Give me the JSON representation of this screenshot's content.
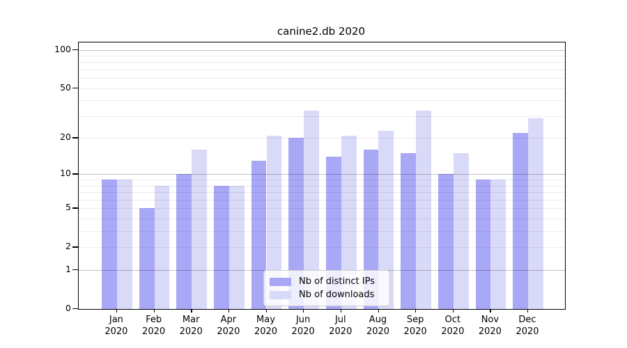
{
  "title": "canine2.db 2020",
  "colors": {
    "distinct_ips": "#a8a8f6",
    "downloads": "#d9d9f8",
    "major_gridline": "#bfbfbf",
    "minor_gridline": "#ebebeb",
    "axis": "#000000",
    "legend_border": "#cccccc"
  },
  "legend": {
    "items": [
      {
        "label": "Nb of distinct IPs",
        "color_key": "distinct_ips"
      },
      {
        "label": "Nb of downloads",
        "color_key": "downloads"
      }
    ]
  },
  "y_axis": {
    "scale": "log1p",
    "max_value": 114,
    "tick_values": [
      100,
      50,
      20,
      10,
      5,
      2,
      1,
      0
    ],
    "tick_labels": [
      "100",
      "50",
      "20",
      "10",
      "5",
      "2",
      "1",
      "0"
    ],
    "major_gridline_values": [
      1,
      10,
      100
    ],
    "minor_gridline_values": [
      2,
      3,
      4,
      5,
      6,
      7,
      8,
      9,
      20,
      30,
      40,
      50,
      60,
      70,
      80,
      90
    ]
  },
  "x_axis": {
    "categories": [
      {
        "month": "Jan",
        "year": "2020"
      },
      {
        "month": "Feb",
        "year": "2020"
      },
      {
        "month": "Mar",
        "year": "2020"
      },
      {
        "month": "Apr",
        "year": "2020"
      },
      {
        "month": "May",
        "year": "2020"
      },
      {
        "month": "Jun",
        "year": "2020"
      },
      {
        "month": "Jul",
        "year": "2020"
      },
      {
        "month": "Aug",
        "year": "2020"
      },
      {
        "month": "Sep",
        "year": "2020"
      },
      {
        "month": "Oct",
        "year": "2020"
      },
      {
        "month": "Nov",
        "year": "2020"
      },
      {
        "month": "Dec",
        "year": "2020"
      }
    ]
  },
  "chart_data": {
    "type": "bar",
    "title": "canine2.db 2020",
    "categories": [
      "Jan 2020",
      "Feb 2020",
      "Mar 2020",
      "Apr 2020",
      "May 2020",
      "Jun 2020",
      "Jul 2020",
      "Aug 2020",
      "Sep 2020",
      "Oct 2020",
      "Nov 2020",
      "Dec 2020"
    ],
    "series": [
      {
        "name": "Nb of distinct IPs",
        "color_key": "distinct_ips",
        "values": [
          9,
          5,
          10,
          8,
          13,
          20,
          14,
          16,
          15,
          10,
          9,
          22
        ]
      },
      {
        "name": "Nb of downloads",
        "color_key": "downloads",
        "values": [
          9,
          8,
          16,
          8,
          21,
          33,
          21,
          23,
          33,
          15,
          9,
          29
        ]
      }
    ],
    "xlabel": "",
    "ylabel": "",
    "yscale": "log1p",
    "ylim": [
      0,
      114
    ],
    "yticks": [
      0,
      1,
      2,
      5,
      10,
      20,
      50,
      100
    ],
    "grid": "on",
    "legend_position": "lower center"
  }
}
